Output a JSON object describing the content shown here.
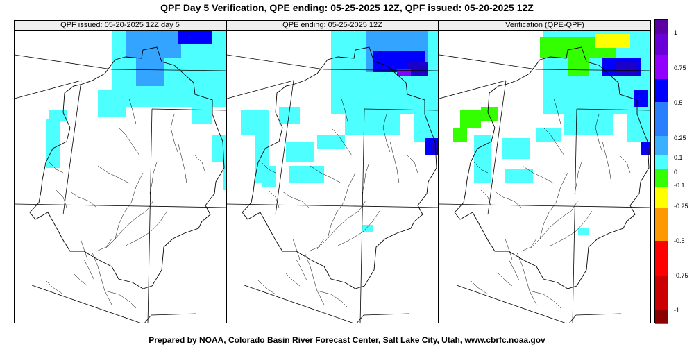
{
  "title": "QPF Day 5 Verification, QPE ending: 05-25-2025 12Z, QPF issued: 05-20-2025 12Z",
  "footer": "Prepared by NOAA, Colorado Basin River Forecast Center, Salt Lake City, Utah, www.cbrfc.noaa.gov",
  "panels": [
    {
      "title": "QPF issued: 05-20-2025 12Z day 5"
    },
    {
      "title": "QPE ending: 05-25-2025 12Z"
    },
    {
      "title": "Verification (QPE-QPF)"
    }
  ],
  "colors": {
    "cyan": "#4dffff",
    "light_blue": "#33a4ff",
    "blue": "#0000ff",
    "dark_blue": "#1a00c8",
    "purple": "#7f00ff",
    "indigo": "#4a009e",
    "green": "#33ff00",
    "yellow": "#ffff00",
    "orange": "#ff9900",
    "red": "#ff0000",
    "dark_red": "#a50000",
    "magenta": "#ff00ff"
  },
  "colorbar": {
    "labels": [
      "1",
      "0.75",
      "0.5",
      "0.25",
      "0.1",
      "0",
      "-0.1",
      "-0.25",
      "-0.5",
      "-0.75",
      "-1"
    ],
    "segments": [
      {
        "color": "#5a00a5"
      },
      {
        "color": "#6a00d8"
      },
      {
        "color": "#9200ff"
      },
      {
        "color": "#0000ff"
      },
      {
        "color": "#2a7fff"
      },
      {
        "color": "#3ab0ff"
      },
      {
        "color": "#4dffff"
      },
      {
        "color": "#33ff00"
      },
      {
        "color": "#ffff00"
      },
      {
        "color": "#ff9900"
      },
      {
        "color": "#ff0000"
      },
      {
        "color": "#cc0000"
      },
      {
        "color": "#8b0000"
      },
      {
        "color": "#ff00ff"
      }
    ]
  }
}
